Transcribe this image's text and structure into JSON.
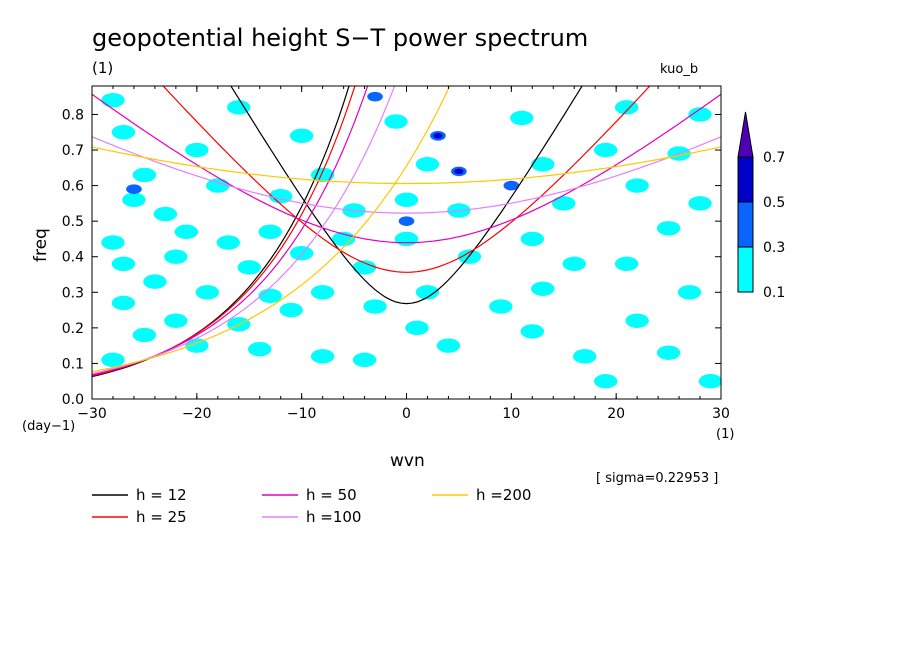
{
  "chart_data": {
    "type": "contour",
    "title": "geopotential height S−T power spectrum",
    "subtitle_left": "(1)",
    "subtitle_right": "kuo_b",
    "xlabel": "wvn",
    "ylabel": "freq",
    "x_unit": "(1)",
    "y_unit": "(day−1)",
    "xlim": [
      -30,
      30
    ],
    "ylim": [
      0.0,
      0.88
    ],
    "x_ticks": [
      "−30",
      "−20",
      "−10",
      "0",
      "10",
      "20",
      "30"
    ],
    "x_tick_values": [
      -30,
      -20,
      -10,
      0,
      10,
      20,
      30
    ],
    "y_ticks": [
      "0.0",
      "0.1",
      "0.2",
      "0.3",
      "0.4",
      "0.5",
      "0.6",
      "0.7",
      "0.8"
    ],
    "y_tick_values": [
      0.0,
      0.1,
      0.2,
      0.3,
      0.4,
      0.5,
      0.6,
      0.7,
      0.8
    ],
    "sigma_note": "[ sigma=0.22953 ]",
    "colorbar": {
      "levels": [
        "0.1",
        "0.3",
        "0.5",
        "0.7"
      ],
      "colors": [
        "#00ffff",
        "#0a64ff",
        "#0000c8",
        "#5000b4"
      ]
    },
    "dispersion_curves": [
      {
        "label": "h = 12",
        "h": 12,
        "color": "#000000"
      },
      {
        "label": "h = 25",
        "h": 25,
        "color": "#ff0000"
      },
      {
        "label": "h = 50",
        "h": 50,
        "color": "#e000c0"
      },
      {
        "label": "h =100",
        "h": 100,
        "color": "#e080ff"
      },
      {
        "label": "h =200",
        "h": 200,
        "color": "#ffc800"
      }
    ],
    "patches": [
      {
        "x": -27,
        "y": 0.75,
        "level": 0
      },
      {
        "x": -25,
        "y": 0.63,
        "level": 0
      },
      {
        "x": -20,
        "y": 0.7,
        "level": 0
      },
      {
        "x": -18,
        "y": 0.6,
        "level": 0
      },
      {
        "x": -26,
        "y": 0.56,
        "level": 0
      },
      {
        "x": -23,
        "y": 0.52,
        "level": 0
      },
      {
        "x": -21,
        "y": 0.47,
        "level": 0
      },
      {
        "x": -28,
        "y": 0.44,
        "level": 0
      },
      {
        "x": -27,
        "y": 0.38,
        "level": 0
      },
      {
        "x": -22,
        "y": 0.4,
        "level": 0
      },
      {
        "x": -17,
        "y": 0.44,
        "level": 0
      },
      {
        "x": -13,
        "y": 0.47,
        "level": 0
      },
      {
        "x": -15,
        "y": 0.37,
        "level": 0
      },
      {
        "x": -10,
        "y": 0.41,
        "level": 0
      },
      {
        "x": -24,
        "y": 0.33,
        "level": 0
      },
      {
        "x": -19,
        "y": 0.3,
        "level": 0
      },
      {
        "x": -13,
        "y": 0.29,
        "level": 0
      },
      {
        "x": -27,
        "y": 0.27,
        "level": 0
      },
      {
        "x": -22,
        "y": 0.22,
        "level": 0
      },
      {
        "x": -16,
        "y": 0.21,
        "level": 0
      },
      {
        "x": -11,
        "y": 0.25,
        "level": 0
      },
      {
        "x": -28,
        "y": 0.11,
        "level": 0
      },
      {
        "x": -25,
        "y": 0.18,
        "level": 0
      },
      {
        "x": -20,
        "y": 0.15,
        "level": 0
      },
      {
        "x": -14,
        "y": 0.14,
        "level": 0
      },
      {
        "x": -8,
        "y": 0.12,
        "level": 0
      },
      {
        "x": -4,
        "y": 0.11,
        "level": 0
      },
      {
        "x": -28,
        "y": 0.84,
        "level": 0
      },
      {
        "x": -16,
        "y": 0.82,
        "level": 0
      },
      {
        "x": -10,
        "y": 0.74,
        "level": 0
      },
      {
        "x": -8,
        "y": 0.63,
        "level": 0
      },
      {
        "x": -12,
        "y": 0.57,
        "level": 0
      },
      {
        "x": -5,
        "y": 0.53,
        "level": 0
      },
      {
        "x": -6,
        "y": 0.45,
        "level": 0
      },
      {
        "x": -4,
        "y": 0.37,
        "level": 0
      },
      {
        "x": -8,
        "y": 0.3,
        "level": 0
      },
      {
        "x": -3,
        "y": 0.26,
        "level": 0
      },
      {
        "x": -1,
        "y": 0.78,
        "level": 0
      },
      {
        "x": 2,
        "y": 0.66,
        "level": 0
      },
      {
        "x": 0,
        "y": 0.56,
        "level": 0
      },
      {
        "x": 0,
        "y": 0.45,
        "level": 0
      },
      {
        "x": 2,
        "y": 0.3,
        "level": 0
      },
      {
        "x": 1,
        "y": 0.2,
        "level": 0
      },
      {
        "x": 5,
        "y": 0.53,
        "level": 0
      },
      {
        "x": 6,
        "y": 0.4,
        "level": 0
      },
      {
        "x": 9,
        "y": 0.26,
        "level": 0
      },
      {
        "x": 4,
        "y": 0.15,
        "level": 0
      },
      {
        "x": 11,
        "y": 0.79,
        "level": 0
      },
      {
        "x": 13,
        "y": 0.66,
        "level": 0
      },
      {
        "x": 15,
        "y": 0.55,
        "level": 0
      },
      {
        "x": 12,
        "y": 0.45,
        "level": 0
      },
      {
        "x": 16,
        "y": 0.38,
        "level": 0
      },
      {
        "x": 13,
        "y": 0.31,
        "level": 0
      },
      {
        "x": 12,
        "y": 0.19,
        "level": 0
      },
      {
        "x": 17,
        "y": 0.12,
        "level": 0
      },
      {
        "x": 19,
        "y": 0.7,
        "level": 0
      },
      {
        "x": 22,
        "y": 0.6,
        "level": 0
      },
      {
        "x": 25,
        "y": 0.48,
        "level": 0
      },
      {
        "x": 28,
        "y": 0.55,
        "level": 0
      },
      {
        "x": 21,
        "y": 0.38,
        "level": 0
      },
      {
        "x": 27,
        "y": 0.3,
        "level": 0
      },
      {
        "x": 22,
        "y": 0.22,
        "level": 0
      },
      {
        "x": 25,
        "y": 0.13,
        "level": 0
      },
      {
        "x": 29,
        "y": 0.05,
        "level": 0
      },
      {
        "x": 19,
        "y": 0.05,
        "level": 0
      },
      {
        "x": 21,
        "y": 0.82,
        "level": 0
      },
      {
        "x": 28,
        "y": 0.8,
        "level": 0
      },
      {
        "x": 26,
        "y": 0.69,
        "level": 0
      },
      {
        "x": 3,
        "y": 0.74,
        "level": 1
      },
      {
        "x": 5,
        "y": 0.64,
        "level": 1
      },
      {
        "x": 10,
        "y": 0.6,
        "level": 1
      },
      {
        "x": -3,
        "y": 0.85,
        "level": 1
      },
      {
        "x": -26,
        "y": 0.59,
        "level": 1
      },
      {
        "x": 0,
        "y": 0.5,
        "level": 1
      },
      {
        "x": 3,
        "y": 0.74,
        "level": 2
      },
      {
        "x": 5,
        "y": 0.64,
        "level": 2
      }
    ]
  }
}
